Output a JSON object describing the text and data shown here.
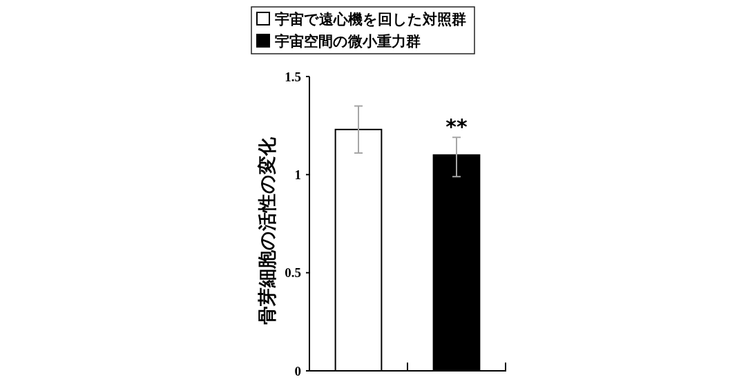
{
  "chart_data": {
    "type": "bar",
    "ylabel": "骨芽細胞の活性の変化",
    "categories": [
      null,
      null
    ],
    "series": [
      {
        "name": "宇宙で遠心機を回した対照群",
        "color": "#ffffff",
        "values": [
          1.23,
          null
        ],
        "errors": [
          [
            1.11,
            1.35
          ],
          null
        ]
      },
      {
        "name": "宇宙空間の微小重力群",
        "color": "#000000",
        "values": [
          null,
          1.1
        ],
        "errors": [
          null,
          [
            0.99,
            1.19
          ]
        ]
      }
    ],
    "ylim": [
      0,
      1.5
    ],
    "yticks": [
      0,
      0.5,
      1,
      1.5
    ],
    "legend": "top",
    "annotations": [
      "**"
    ]
  }
}
